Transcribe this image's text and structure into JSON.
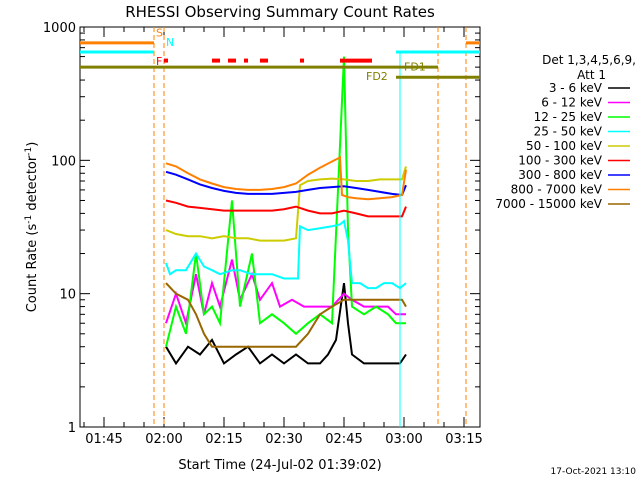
{
  "chart_data": {
    "type": "line",
    "title": "RHESSI Observing Summary Count Rates",
    "xlabel": "Start Time (24-Jul-02 01:39:02)",
    "ylabel_main": "Count Rate (s",
    "ylabel_sup1": "-1",
    "ylabel_mid": " detector",
    "ylabel_sup2": "-1",
    "ylabel_end": ")",
    "y_scale": "log",
    "ylim": [
      1,
      1000
    ],
    "xlim_minutes": [
      0,
      100
    ],
    "x_ticks": [
      {
        "label": "01:45",
        "min": 6
      },
      {
        "label": "02:00",
        "min": 21
      },
      {
        "label": "02:15",
        "min": 36
      },
      {
        "label": "02:30",
        "min": 51
      },
      {
        "label": "02:45",
        "min": 66
      },
      {
        "label": "03:00",
        "min": 81
      },
      {
        "label": "03:15",
        "min": 96
      }
    ],
    "y_ticks": [
      {
        "label": "1",
        "value": 1
      },
      {
        "label": "10",
        "value": 10
      },
      {
        "label": "100",
        "value": 100
      },
      {
        "label": "1000",
        "value": 1000
      }
    ],
    "legend_header": [
      "Det 1,3,4,5,6,9,",
      "Att 1"
    ],
    "legend_position": "right",
    "series": [
      {
        "name": "3 - 6 keV",
        "color": "#000000",
        "values": [
          [
            21.5,
            4
          ],
          [
            24,
            3
          ],
          [
            27,
            4
          ],
          [
            30,
            3.5
          ],
          [
            33,
            4.5
          ],
          [
            36,
            3
          ],
          [
            39,
            3.5
          ],
          [
            42,
            4
          ],
          [
            45,
            3
          ],
          [
            48,
            3.5
          ],
          [
            51,
            3
          ],
          [
            54,
            3.5
          ],
          [
            57,
            3
          ],
          [
            60,
            3
          ],
          [
            62,
            3.5
          ],
          [
            64,
            4.5
          ],
          [
            66,
            12
          ],
          [
            67,
            6
          ],
          [
            68,
            3.5
          ],
          [
            71,
            3
          ],
          [
            74,
            3
          ],
          [
            77,
            3
          ],
          [
            80,
            3
          ],
          [
            81.5,
            3.5
          ]
        ]
      },
      {
        "name": "6 - 12 keV",
        "color": "#ff00ff",
        "values": [
          [
            21.5,
            6
          ],
          [
            24,
            10
          ],
          [
            26.5,
            6
          ],
          [
            29,
            14
          ],
          [
            31,
            7
          ],
          [
            33,
            12
          ],
          [
            35,
            8
          ],
          [
            38,
            18
          ],
          [
            40,
            9
          ],
          [
            43,
            14
          ],
          [
            45,
            9
          ],
          [
            48,
            12
          ],
          [
            50,
            8
          ],
          [
            53,
            9
          ],
          [
            56,
            8
          ],
          [
            58,
            8
          ],
          [
            61,
            8
          ],
          [
            63,
            8
          ],
          [
            66,
            10
          ],
          [
            68,
            9
          ],
          [
            71,
            8
          ],
          [
            74,
            8
          ],
          [
            77,
            8
          ],
          [
            79,
            7
          ],
          [
            81.5,
            7
          ]
        ]
      },
      {
        "name": "12 - 25 keV",
        "color": "#00ff00",
        "values": [
          [
            21.5,
            4
          ],
          [
            24,
            8
          ],
          [
            26.5,
            5
          ],
          [
            29,
            20
          ],
          [
            31,
            7
          ],
          [
            33,
            8
          ],
          [
            35,
            6
          ],
          [
            38,
            50
          ],
          [
            40,
            8
          ],
          [
            43,
            20
          ],
          [
            45,
            6
          ],
          [
            48,
            7
          ],
          [
            51,
            6
          ],
          [
            54,
            5
          ],
          [
            57,
            6
          ],
          [
            60,
            7
          ],
          [
            63,
            6
          ],
          [
            66,
            600
          ],
          [
            67,
            30
          ],
          [
            68,
            8
          ],
          [
            71,
            7
          ],
          [
            74,
            8
          ],
          [
            77,
            7
          ],
          [
            79,
            6
          ],
          [
            81.5,
            6
          ]
        ]
      },
      {
        "name": "25 - 50 keV",
        "color": "#00ffff",
        "values": [
          [
            21.5,
            17
          ],
          [
            22.5,
            14
          ],
          [
            24,
            15
          ],
          [
            26.5,
            15
          ],
          [
            29,
            20
          ],
          [
            31,
            16
          ],
          [
            33,
            15
          ],
          [
            35,
            14
          ],
          [
            38,
            15
          ],
          [
            40,
            15
          ],
          [
            43,
            14
          ],
          [
            45,
            14
          ],
          [
            48,
            14
          ],
          [
            51,
            13
          ],
          [
            53,
            13
          ],
          [
            54.5,
            13
          ],
          [
            55,
            32
          ],
          [
            57,
            30
          ],
          [
            60,
            31
          ],
          [
            63,
            32
          ],
          [
            65,
            33
          ],
          [
            66,
            35
          ],
          [
            67,
            25
          ],
          [
            68,
            12
          ],
          [
            70,
            12
          ],
          [
            72,
            11
          ],
          [
            74,
            11
          ],
          [
            76,
            12
          ],
          [
            78,
            12
          ],
          [
            80,
            11
          ],
          [
            81.5,
            12
          ]
        ]
      },
      {
        "name": "50 - 100 keV",
        "color": "#cccc00",
        "values": [
          [
            21.5,
            30
          ],
          [
            24,
            28
          ],
          [
            27,
            27
          ],
          [
            30,
            27
          ],
          [
            33,
            26
          ],
          [
            36,
            27
          ],
          [
            39,
            26
          ],
          [
            42,
            26
          ],
          [
            45,
            25
          ],
          [
            48,
            25
          ],
          [
            51,
            25
          ],
          [
            54,
            26
          ],
          [
            55,
            65
          ],
          [
            57,
            70
          ],
          [
            60,
            72
          ],
          [
            63,
            73
          ],
          [
            66,
            72
          ],
          [
            69,
            70
          ],
          [
            72,
            70
          ],
          [
            75,
            72
          ],
          [
            78,
            72
          ],
          [
            80.5,
            72
          ],
          [
            81.5,
            90
          ]
        ]
      },
      {
        "name": "100 - 300 keV",
        "color": "#ff0000",
        "values": [
          [
            21.5,
            50
          ],
          [
            24,
            48
          ],
          [
            27,
            45
          ],
          [
            30,
            44
          ],
          [
            33,
            43
          ],
          [
            36,
            42
          ],
          [
            39,
            42
          ],
          [
            42,
            42
          ],
          [
            45,
            42
          ],
          [
            48,
            42
          ],
          [
            51,
            43
          ],
          [
            54,
            45
          ],
          [
            57,
            42
          ],
          [
            60,
            40
          ],
          [
            63,
            40
          ],
          [
            66,
            42
          ],
          [
            69,
            40
          ],
          [
            72,
            38
          ],
          [
            75,
            38
          ],
          [
            78,
            38
          ],
          [
            80.5,
            38
          ],
          [
            81.5,
            45
          ]
        ]
      },
      {
        "name": "300 - 800 keV",
        "color": "#0000ff",
        "values": [
          [
            21.5,
            82
          ],
          [
            24,
            78
          ],
          [
            27,
            72
          ],
          [
            30,
            66
          ],
          [
            33,
            62
          ],
          [
            36,
            59
          ],
          [
            39,
            57
          ],
          [
            42,
            56
          ],
          [
            45,
            56
          ],
          [
            48,
            56
          ],
          [
            51,
            57
          ],
          [
            54,
            58
          ],
          [
            57,
            60
          ],
          [
            60,
            62
          ],
          [
            63,
            63
          ],
          [
            66,
            64
          ],
          [
            69,
            62
          ],
          [
            72,
            60
          ],
          [
            75,
            58
          ],
          [
            78,
            56
          ],
          [
            80.5,
            55
          ],
          [
            81.5,
            65
          ]
        ]
      },
      {
        "name": "800 - 7000 keV",
        "color": "#ff8000",
        "values": [
          [
            21.5,
            95
          ],
          [
            24,
            90
          ],
          [
            27,
            80
          ],
          [
            30,
            72
          ],
          [
            33,
            67
          ],
          [
            36,
            63
          ],
          [
            39,
            61
          ],
          [
            42,
            60
          ],
          [
            45,
            60
          ],
          [
            48,
            61
          ],
          [
            51,
            63
          ],
          [
            54,
            67
          ],
          [
            57,
            78
          ],
          [
            60,
            88
          ],
          [
            63,
            98
          ],
          [
            65,
            105
          ],
          [
            65.5,
            55
          ],
          [
            67,
            53
          ],
          [
            69,
            52
          ],
          [
            72,
            51
          ],
          [
            75,
            52
          ],
          [
            78,
            53
          ],
          [
            80.5,
            55
          ],
          [
            81.5,
            85
          ]
        ]
      },
      {
        "name": "7000 - 15000 keV",
        "color": "#996600",
        "values": [
          [
            21.5,
            12
          ],
          [
            24,
            10
          ],
          [
            27,
            9
          ],
          [
            29,
            7
          ],
          [
            31,
            5
          ],
          [
            33,
            4
          ],
          [
            36,
            4
          ],
          [
            39,
            4
          ],
          [
            42,
            4
          ],
          [
            45,
            4
          ],
          [
            48,
            4
          ],
          [
            51,
            4
          ],
          [
            54,
            4
          ],
          [
            57,
            5
          ],
          [
            60,
            7
          ],
          [
            63,
            8
          ],
          [
            66,
            9
          ],
          [
            69,
            9
          ],
          [
            72,
            9
          ],
          [
            75,
            9
          ],
          [
            78,
            9
          ],
          [
            80.5,
            9
          ],
          [
            81.5,
            8
          ]
        ]
      }
    ],
    "annotations": {
      "fd1_label": "FD1",
      "fd2_label": "FD2",
      "s_label": "S",
      "n_label": "N",
      "f_label": "F"
    }
  },
  "footer_date": "17-Oct-2021 13:10"
}
